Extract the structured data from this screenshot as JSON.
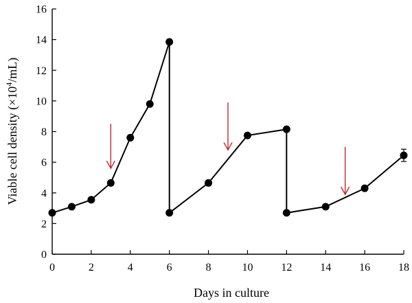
{
  "colors": {
    "series": "#000000",
    "arrow": "#c0272d",
    "background": "#ffffff"
  },
  "chart_data": {
    "type": "line",
    "title": "",
    "xlabel": "Days in culture",
    "ylabel_main": "Viable cell density (×10",
    "ylabel_sup": "4",
    "ylabel_tail": "/mL)",
    "xlim": [
      0,
      18
    ],
    "ylim": [
      0,
      16
    ],
    "x_ticks": [
      "0",
      "2",
      "4",
      "6",
      "8",
      "10",
      "12",
      "14",
      "16",
      "18"
    ],
    "y_ticks": [
      "0",
      "2",
      "4",
      "6",
      "8",
      "10",
      "12",
      "14",
      "16"
    ],
    "grid": false,
    "legend": "none",
    "series": [
      {
        "x": [
          0,
          1,
          2,
          3,
          4,
          5,
          6,
          6,
          8,
          10,
          12,
          12,
          14,
          16,
          18
        ],
        "y": [
          2.7,
          3.1,
          3.55,
          4.65,
          7.6,
          9.8,
          13.85,
          2.7,
          4.65,
          7.75,
          8.15,
          2.7,
          3.1,
          4.3,
          6.45
        ],
        "error": [
          0,
          0,
          0,
          0,
          0,
          0,
          0,
          0,
          0,
          0,
          0,
          0,
          0,
          0,
          0.4
        ]
      }
    ],
    "annotations": [
      {
        "kind": "down-arrow",
        "x": 3,
        "y_from": 8.5,
        "y_to": 5.6
      },
      {
        "kind": "down-arrow",
        "x": 9,
        "y_from": 9.9,
        "y_to": 6.8
      },
      {
        "kind": "down-arrow",
        "x": 15,
        "y_from": 7.0,
        "y_to": 3.9
      }
    ]
  }
}
